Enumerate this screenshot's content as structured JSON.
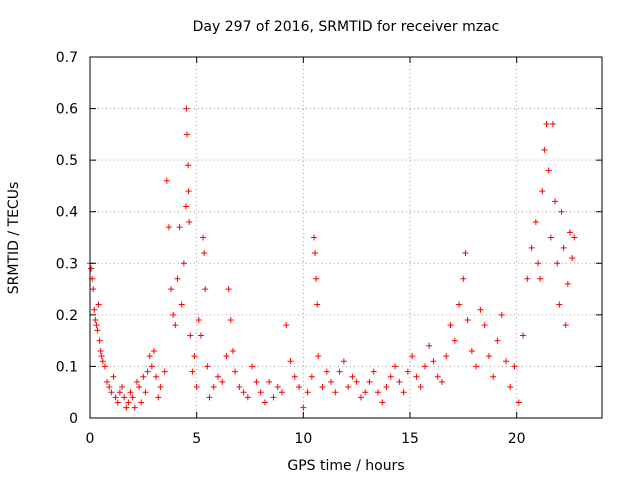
{
  "chart_data": {
    "type": "scatter",
    "title": "Day 297 of 2016, SRMTID for receiver mzac",
    "xlabel": "GPS time / hours",
    "ylabel": "SRMTID / TECUs",
    "xlim": [
      0,
      24
    ],
    "ylim": [
      0,
      0.7
    ],
    "xticks": [
      0,
      5,
      10,
      15,
      20
    ],
    "yticks": [
      0,
      0.1,
      0.2,
      0.3,
      0.4,
      0.5,
      0.6,
      0.7
    ],
    "ytick_labels": [
      "0",
      "0.1",
      "0.2",
      "0.3",
      "0.4",
      "0.5",
      "0.6",
      "0.7"
    ],
    "grid": true,
    "marker": "+",
    "series": [
      {
        "name": "SRMTID",
        "color": "#ff0000",
        "points": [
          [
            0.0,
            0.3
          ],
          [
            0.05,
            0.29
          ],
          [
            0.1,
            0.27
          ],
          [
            0.15,
            0.25
          ],
          [
            0.2,
            0.21
          ],
          [
            0.25,
            0.19
          ],
          [
            0.3,
            0.18
          ],
          [
            0.35,
            0.17
          ],
          [
            0.4,
            0.22
          ],
          [
            0.45,
            0.15
          ],
          [
            0.5,
            0.13
          ],
          [
            0.55,
            0.12
          ],
          [
            0.6,
            0.11
          ],
          [
            0.7,
            0.1
          ],
          [
            0.8,
            0.07
          ],
          [
            0.9,
            0.06
          ],
          [
            1.0,
            0.05
          ],
          [
            1.1,
            0.08
          ],
          [
            1.2,
            0.04
          ],
          [
            1.3,
            0.03
          ],
          [
            1.4,
            0.05
          ],
          [
            1.5,
            0.06
          ],
          [
            1.6,
            0.04
          ],
          [
            1.7,
            0.02
          ],
          [
            1.8,
            0.03
          ],
          [
            1.9,
            0.05
          ],
          [
            2.0,
            0.04
          ],
          [
            2.1,
            0.02
          ],
          [
            2.2,
            0.07
          ],
          [
            2.3,
            0.06
          ],
          [
            2.4,
            0.03
          ],
          [
            2.5,
            0.08
          ],
          [
            2.6,
            0.05
          ],
          [
            2.7,
            0.09
          ],
          [
            2.8,
            0.12
          ],
          [
            2.9,
            0.1
          ],
          [
            3.0,
            0.13
          ],
          [
            3.1,
            0.08
          ],
          [
            3.2,
            0.04
          ],
          [
            3.3,
            0.06
          ],
          [
            3.5,
            0.09
          ],
          [
            3.6,
            0.46
          ],
          [
            3.7,
            0.37
          ],
          [
            3.8,
            0.25
          ],
          [
            3.9,
            0.2
          ],
          [
            4.0,
            0.18
          ],
          [
            4.1,
            0.27
          ],
          [
            4.2,
            0.37
          ],
          [
            4.3,
            0.22
          ],
          [
            4.4,
            0.3
          ],
          [
            4.5,
            0.41
          ],
          [
            4.52,
            0.6
          ],
          [
            4.55,
            0.55
          ],
          [
            4.6,
            0.49
          ],
          [
            4.62,
            0.44
          ],
          [
            4.65,
            0.38
          ],
          [
            4.7,
            0.16
          ],
          [
            4.8,
            0.09
          ],
          [
            4.9,
            0.12
          ],
          [
            5.0,
            0.06
          ],
          [
            5.1,
            0.19
          ],
          [
            5.2,
            0.16
          ],
          [
            5.3,
            0.35
          ],
          [
            5.35,
            0.32
          ],
          [
            5.4,
            0.25
          ],
          [
            5.5,
            0.1
          ],
          [
            5.6,
            0.04
          ],
          [
            5.8,
            0.06
          ],
          [
            6.0,
            0.08
          ],
          [
            6.2,
            0.07
          ],
          [
            6.4,
            0.12
          ],
          [
            6.5,
            0.25
          ],
          [
            6.6,
            0.19
          ],
          [
            6.7,
            0.13
          ],
          [
            6.8,
            0.09
          ],
          [
            7.0,
            0.06
          ],
          [
            7.2,
            0.05
          ],
          [
            7.4,
            0.04
          ],
          [
            7.6,
            0.1
          ],
          [
            7.8,
            0.07
          ],
          [
            8.0,
            0.05
          ],
          [
            8.2,
            0.03
          ],
          [
            8.4,
            0.07
          ],
          [
            8.6,
            0.04
          ],
          [
            8.8,
            0.06
          ],
          [
            9.0,
            0.05
          ],
          [
            9.2,
            0.18
          ],
          [
            9.4,
            0.11
          ],
          [
            9.6,
            0.08
          ],
          [
            9.8,
            0.06
          ],
          [
            10.0,
            0.02
          ],
          [
            10.2,
            0.05
          ],
          [
            10.4,
            0.08
          ],
          [
            10.5,
            0.35
          ],
          [
            10.55,
            0.32
          ],
          [
            10.6,
            0.27
          ],
          [
            10.65,
            0.22
          ],
          [
            10.7,
            0.12
          ],
          [
            10.9,
            0.06
          ],
          [
            11.1,
            0.09
          ],
          [
            11.3,
            0.07
          ],
          [
            11.5,
            0.05
          ],
          [
            11.7,
            0.09
          ],
          [
            11.9,
            0.11
          ],
          [
            12.1,
            0.06
          ],
          [
            12.3,
            0.08
          ],
          [
            12.5,
            0.07
          ],
          [
            12.7,
            0.04
          ],
          [
            12.9,
            0.05
          ],
          [
            13.1,
            0.07
          ],
          [
            13.3,
            0.09
          ],
          [
            13.5,
            0.05
          ],
          [
            13.7,
            0.03
          ],
          [
            13.9,
            0.06
          ],
          [
            14.1,
            0.08
          ],
          [
            14.3,
            0.1
          ],
          [
            14.5,
            0.07
          ],
          [
            14.7,
            0.05
          ],
          [
            14.9,
            0.09
          ],
          [
            15.1,
            0.12
          ],
          [
            15.3,
            0.08
          ],
          [
            15.5,
            0.06
          ],
          [
            15.7,
            0.1
          ],
          [
            15.9,
            0.14
          ],
          [
            16.1,
            0.11
          ],
          [
            16.3,
            0.08
          ],
          [
            16.5,
            0.07
          ],
          [
            16.7,
            0.12
          ],
          [
            16.9,
            0.18
          ],
          [
            17.1,
            0.15
          ],
          [
            17.3,
            0.22
          ],
          [
            17.5,
            0.27
          ],
          [
            17.6,
            0.32
          ],
          [
            17.7,
            0.19
          ],
          [
            17.9,
            0.13
          ],
          [
            18.1,
            0.1
          ],
          [
            18.3,
            0.21
          ],
          [
            18.5,
            0.18
          ],
          [
            18.7,
            0.12
          ],
          [
            18.9,
            0.08
          ],
          [
            19.1,
            0.15
          ],
          [
            19.3,
            0.2
          ],
          [
            19.5,
            0.11
          ],
          [
            19.7,
            0.06
          ],
          [
            19.9,
            0.1
          ],
          [
            20.1,
            0.03
          ],
          [
            20.3,
            0.16
          ],
          [
            20.5,
            0.27
          ],
          [
            20.7,
            0.33
          ],
          [
            20.9,
            0.38
          ],
          [
            21.0,
            0.3
          ],
          [
            21.1,
            0.27
          ],
          [
            21.2,
            0.44
          ],
          [
            21.3,
            0.52
          ],
          [
            21.4,
            0.57
          ],
          [
            21.5,
            0.48
          ],
          [
            21.6,
            0.35
          ],
          [
            21.7,
            0.57
          ],
          [
            21.8,
            0.42
          ],
          [
            21.9,
            0.3
          ],
          [
            22.0,
            0.22
          ],
          [
            22.1,
            0.4
          ],
          [
            22.2,
            0.33
          ],
          [
            22.3,
            0.18
          ],
          [
            22.4,
            0.26
          ],
          [
            22.5,
            0.36
          ],
          [
            22.6,
            0.31
          ],
          [
            22.7,
            0.35
          ]
        ]
      }
    ]
  }
}
